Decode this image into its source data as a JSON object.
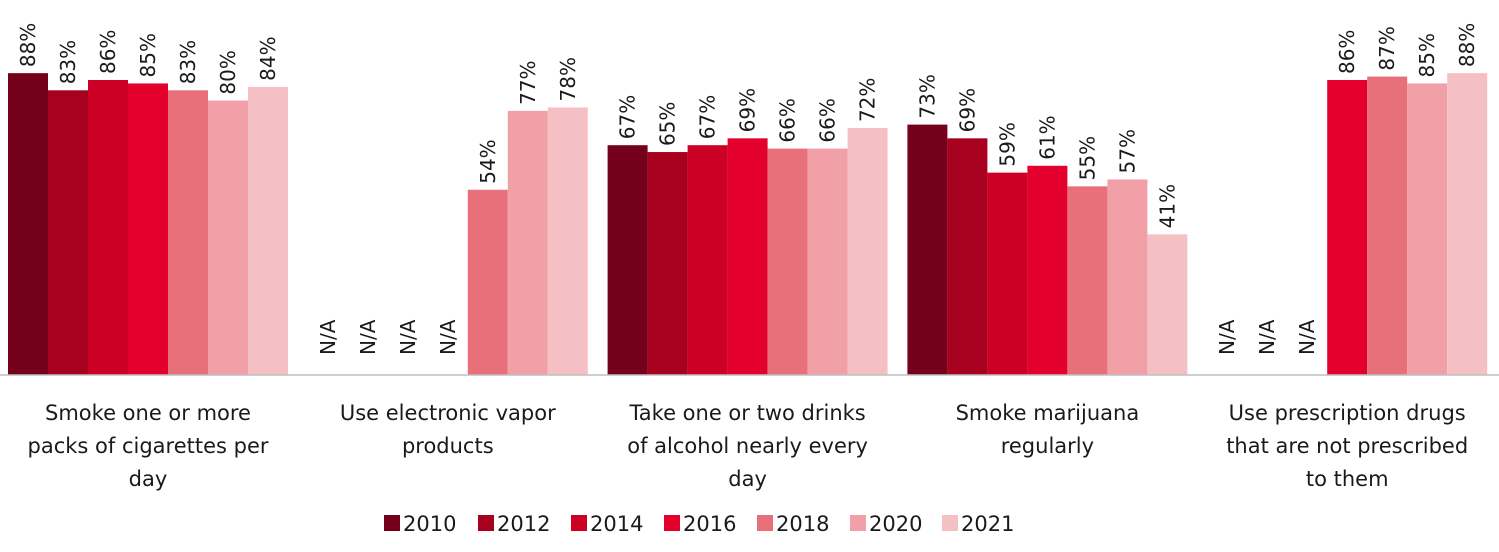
{
  "chart_data": {
    "type": "bar",
    "categories": [
      [
        "Smoke one or more",
        "packs of cigarettes per",
        "day"
      ],
      [
        "Use electronic vapor",
        "products"
      ],
      [
        "Take one or two drinks",
        "of alcohol nearly every",
        "day"
      ],
      [
        "Smoke marijuana",
        "regularly"
      ],
      [
        "Use prescription drugs",
        "that are not prescribed",
        "to them"
      ]
    ],
    "series": [
      {
        "name": "2010",
        "color": "#75001c",
        "values": [
          88,
          null,
          67,
          73,
          null
        ]
      },
      {
        "name": "2012",
        "color": "#a8001f",
        "values": [
          83,
          null,
          65,
          69,
          null
        ]
      },
      {
        "name": "2014",
        "color": "#cc0025",
        "values": [
          86,
          null,
          67,
          59,
          null
        ]
      },
      {
        "name": "2016",
        "color": "#e3002d",
        "values": [
          85,
          null,
          69,
          61,
          86
        ]
      },
      {
        "name": "2018",
        "color": "#e8707a",
        "values": [
          83,
          54,
          66,
          55,
          87
        ]
      },
      {
        "name": "2020",
        "color": "#f0a0a6",
        "values": [
          80,
          77,
          66,
          57,
          85
        ]
      },
      {
        "name": "2021",
        "color": "#f4c0c4",
        "values": [
          84,
          78,
          72,
          41,
          88
        ]
      }
    ],
    "value_suffix": "%",
    "na_label": "N/A",
    "ylim": [
      0,
      100
    ],
    "legend_position": "bottom",
    "grid": false
  }
}
